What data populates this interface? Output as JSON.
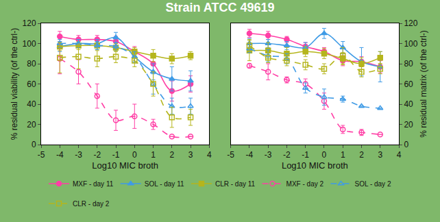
{
  "chart_data": [
    {
      "type": "line",
      "title": "Strain ATCC 49619",
      "x_label": "Log10 MIC broth",
      "y_label": "% residual viability (of the ctrl-)",
      "x": [
        -4,
        -3,
        -2,
        -1,
        0,
        1,
        2,
        3
      ],
      "xlim": [
        -5,
        4
      ],
      "xticks": [
        -5,
        -4,
        -3,
        -2,
        -1,
        0,
        1,
        2,
        3,
        4
      ],
      "ylim": [
        0,
        120
      ],
      "yticks": [
        0,
        20,
        40,
        60,
        80,
        100,
        120
      ],
      "grid": false,
      "legend": "bottom",
      "series": [
        {
          "name": "MXF - day 11",
          "color": "#ff3fa6",
          "marker": "circle",
          "line_style": "solid",
          "values": [
            107,
            104,
            104,
            102,
            92,
            80,
            53,
            60
          ],
          "errors": [
            5,
            4,
            4,
            5,
            5,
            8,
            10,
            8
          ]
        },
        {
          "name": "SOL - day 11",
          "color": "#3f9be6",
          "marker": "triangle-up",
          "line_style": "solid",
          "values": [
            97,
            100,
            100,
            106,
            87,
            72,
            65,
            63
          ],
          "errors": [
            5,
            4,
            4,
            5,
            6,
            8,
            12,
            10
          ]
        },
        {
          "name": "CLR - day 11",
          "color": "#b5b51c",
          "marker": "square",
          "line_style": "solid",
          "values": [
            97,
            98,
            98,
            96,
            92,
            88,
            85,
            88
          ],
          "errors": [
            4,
            4,
            4,
            4,
            4,
            6,
            5,
            4
          ]
        },
        {
          "name": "MXF - day 2",
          "color": "#ff3fa6",
          "marker": "circle-open",
          "line_style": "dash",
          "values": [
            85,
            72,
            48,
            24,
            28,
            20,
            8,
            8
          ],
          "errors": [
            15,
            12,
            12,
            10,
            12,
            5,
            0,
            0
          ]
        },
        {
          "name": "SOL - day 2",
          "color": "#3f9be6",
          "marker": "triangle-up-open",
          "line_style": "dash",
          "values": [
            100,
            100,
            98,
            97,
            87,
            60,
            38,
            38
          ],
          "errors": [
            4,
            4,
            4,
            4,
            5,
            10,
            8,
            8
          ]
        },
        {
          "name": "CLR - day 2",
          "color": "#b5b51c",
          "marker": "square-open",
          "line_style": "dash",
          "values": [
            86,
            87,
            85,
            87,
            83,
            60,
            27,
            27
          ],
          "errors": [
            15,
            12,
            8,
            6,
            6,
            12,
            10,
            8
          ]
        }
      ]
    },
    {
      "type": "line",
      "x_label": "Log10 MIC broth",
      "y_label": "% residual matrix (of the ctrl-)",
      "x": [
        -4,
        -3,
        -2,
        -1,
        0,
        1,
        2,
        3
      ],
      "xlim": [
        -5,
        4
      ],
      "xticks": [
        -5,
        -4,
        -3,
        -2,
        -1,
        0,
        1,
        2,
        3,
        4
      ],
      "ylim": [
        0,
        120
      ],
      "yticks": [
        0,
        20,
        40,
        60,
        80,
        100,
        120
      ],
      "grid": false,
      "legend": "bottom",
      "series": [
        {
          "name": "MXF - day 11",
          "color": "#ff3fa6",
          "marker": "circle",
          "line_style": "solid",
          "values": [
            110,
            108,
            104,
            97,
            92,
            83,
            82,
            77
          ],
          "errors": [
            4,
            4,
            3,
            4,
            4,
            5,
            5,
            6
          ]
        },
        {
          "name": "SOL - day 11",
          "color": "#3f9be6",
          "marker": "triangle-up",
          "line_style": "solid",
          "values": [
            100,
            100,
            98,
            96,
            110,
            96,
            82,
            77
          ],
          "errors": [
            5,
            4,
            4,
            5,
            5,
            6,
            14,
            15
          ]
        },
        {
          "name": "CLR - day 11",
          "color": "#b5b51c",
          "marker": "square",
          "line_style": "solid",
          "values": [
            93,
            93,
            90,
            92,
            90,
            85,
            80,
            86
          ],
          "errors": [
            10,
            8,
            6,
            5,
            5,
            6,
            6,
            6
          ]
        },
        {
          "name": "MXF - day 2",
          "color": "#ff3fa6",
          "marker": "circle-open",
          "line_style": "dash",
          "values": [
            78,
            72,
            64,
            60,
            43,
            15,
            12,
            10
          ],
          "errors": [
            2,
            8,
            3,
            5,
            8,
            4,
            3,
            0
          ]
        },
        {
          "name": "SOL - day 2",
          "color": "#3f9be6",
          "marker": "triangle-up-open",
          "line_style": "dash",
          "values": [
            95,
            88,
            85,
            56,
            47,
            45,
            38,
            36
          ],
          "errors": [
            4,
            6,
            5,
            5,
            8,
            3,
            0,
            0
          ]
        },
        {
          "name": "CLR - day 2",
          "color": "#b5b51c",
          "marker": "square-open",
          "line_style": "dash",
          "values": [
            98,
            86,
            83,
            79,
            75,
            88,
            72,
            75
          ],
          "errors": [
            6,
            5,
            5,
            5,
            5,
            8,
            5,
            5
          ]
        }
      ]
    }
  ]
}
